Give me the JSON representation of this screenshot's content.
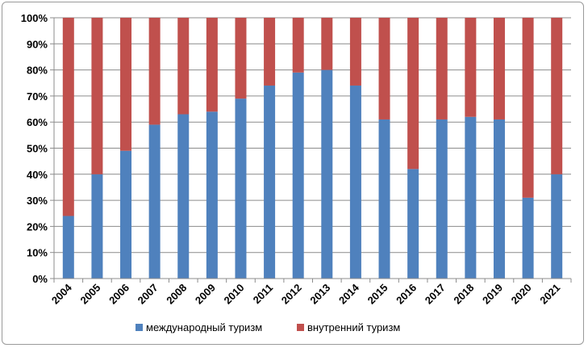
{
  "chart_data": {
    "type": "bar",
    "stacked": true,
    "percent_stacked": true,
    "categories": [
      "2004",
      "2005",
      "2006",
      "2007",
      "2008",
      "2009",
      "2010",
      "2011",
      "2012",
      "2013",
      "2014",
      "2015",
      "2016",
      "2017",
      "2018",
      "2019",
      "2020",
      "2021"
    ],
    "series": [
      {
        "name": "международный туризм",
        "color": "#4f81bd",
        "values": [
          24,
          40,
          49,
          59,
          63,
          64,
          69,
          74,
          79,
          80,
          74,
          61,
          42,
          61,
          62,
          61,
          31,
          40
        ]
      },
      {
        "name": "внутренний туризм",
        "color": "#c0504d",
        "values": [
          76,
          60,
          51,
          41,
          37,
          36,
          31,
          26,
          21,
          20,
          26,
          39,
          58,
          39,
          38,
          39,
          69,
          60
        ]
      }
    ],
    "ylim": [
      0,
      100
    ],
    "y_ticks": [
      "0%",
      "10%",
      "20%",
      "30%",
      "40%",
      "50%",
      "60%",
      "70%",
      "80%",
      "90%",
      "100%"
    ],
    "grid": true,
    "legend_position": "bottom"
  }
}
